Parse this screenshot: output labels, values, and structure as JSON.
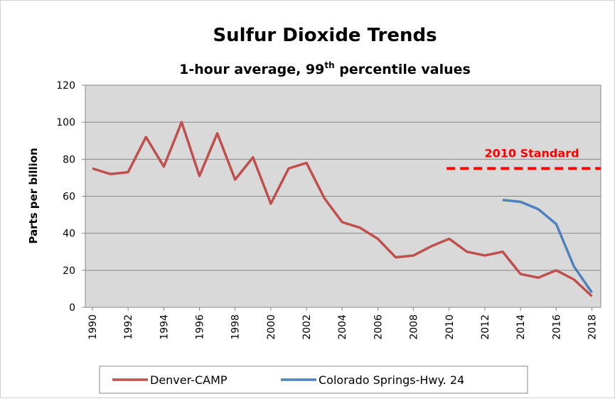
{
  "chart_data": {
    "type": "line",
    "title": "Sulfur Dioxide Trends",
    "subtitle": [
      "1-hour average, 99",
      "th",
      " percentile values"
    ],
    "y_label": "Parts per billion",
    "x": [
      1990,
      1991,
      1992,
      1993,
      1994,
      1995,
      1996,
      1997,
      1998,
      1999,
      2000,
      2001,
      2002,
      2003,
      2004,
      2005,
      2006,
      2007,
      2008,
      2009,
      2010,
      2011,
      2012,
      2013,
      2014,
      2015,
      2016,
      2017,
      2018
    ],
    "xlim": [
      1989.6,
      2018.5
    ],
    "xticks": [
      1990,
      1992,
      1994,
      1996,
      1998,
      2000,
      2002,
      2004,
      2006,
      2008,
      2010,
      2012,
      2014,
      2016,
      2018
    ],
    "ylim": [
      0,
      120
    ],
    "yticks": [
      0,
      20,
      40,
      60,
      80,
      100,
      120
    ],
    "grid": true,
    "legend": "bottom",
    "series": [
      {
        "name": "Denver-CAMP",
        "color": "#c0504d",
        "values": [
          75,
          72,
          73,
          92,
          76,
          100,
          71,
          94,
          69,
          81,
          56,
          75,
          78,
          59,
          46,
          43,
          37,
          27,
          28,
          33,
          37,
          30,
          28,
          30,
          18,
          16,
          20,
          15,
          6
        ]
      },
      {
        "name": "Colorado Springs-Hwy. 24",
        "color": "#4f81bd",
        "values": [
          null,
          null,
          null,
          null,
          null,
          null,
          null,
          null,
          null,
          null,
          null,
          null,
          null,
          null,
          null,
          null,
          null,
          null,
          null,
          null,
          null,
          null,
          null,
          58,
          57,
          53,
          45,
          22,
          8
        ]
      }
    ],
    "reference": {
      "label": "2010 Standard",
      "value": 75,
      "color": "#ff0000"
    }
  }
}
